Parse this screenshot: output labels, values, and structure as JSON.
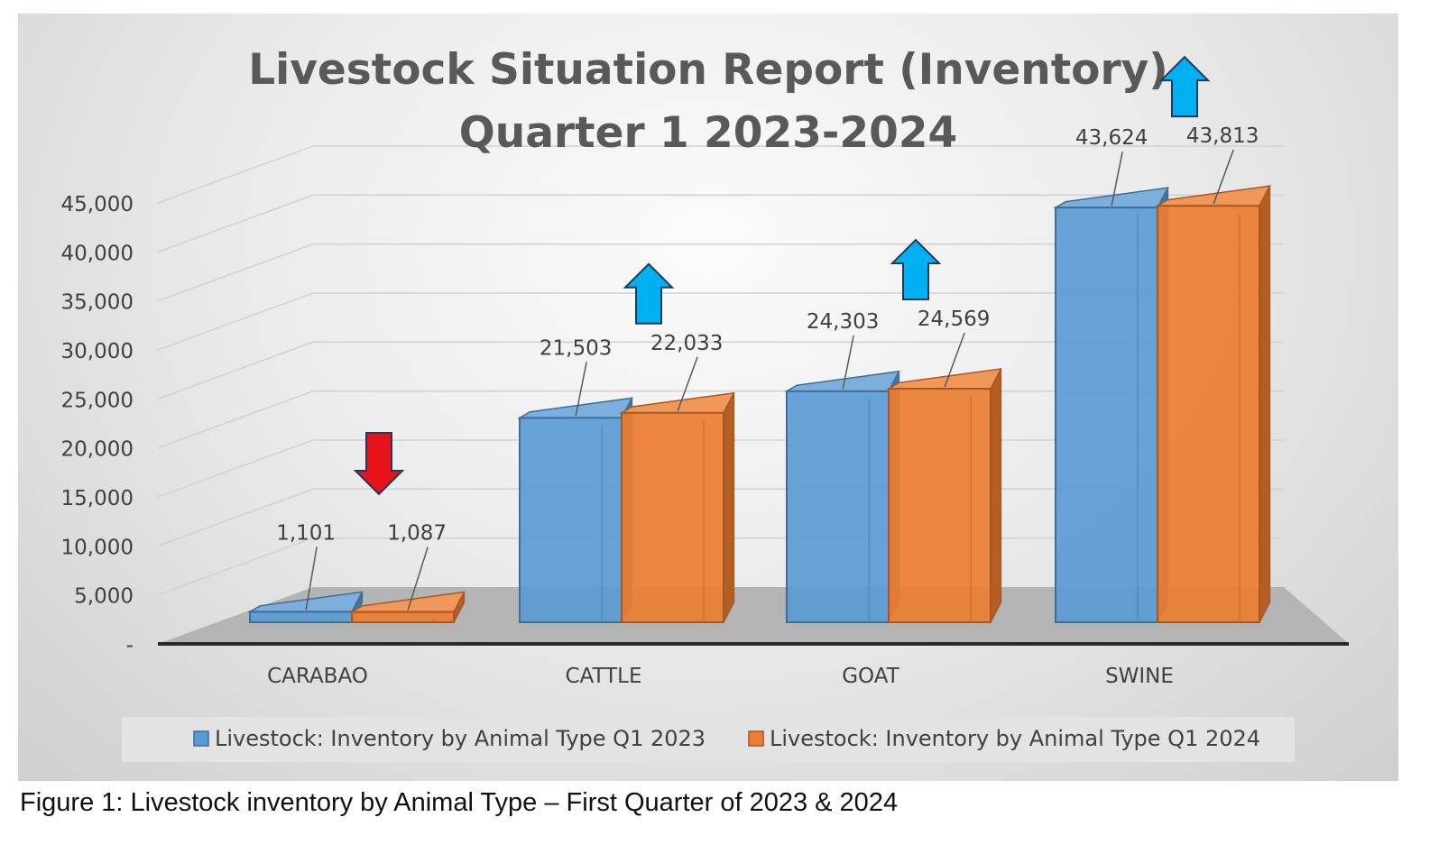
{
  "chart_data": {
    "type": "bar",
    "title_line1": "Livestock Situation Report (Inventory)",
    "title_line2": "Quarter 1 2023-2024",
    "categories": [
      "CARABAO",
      "CATTLE",
      "GOAT",
      "SWINE"
    ],
    "series": [
      {
        "name": "Livestock: Inventory by Animal Type Q1 2023",
        "values": [
          1101,
          21503,
          24303,
          43624
        ],
        "labels": [
          "1,101",
          "21,503",
          "24,303",
          "43,624"
        ],
        "color": "#5B9BD5"
      },
      {
        "name": "Livestock: Inventory by Animal Type Q1 2024",
        "values": [
          1087,
          22033,
          24569,
          43813
        ],
        "labels": [
          "1,087",
          "22,033",
          "24,569",
          "43,813"
        ],
        "color": "#ED7D31"
      }
    ],
    "ylim": [
      0,
      45000
    ],
    "yticks": [
      "-",
      "5,000",
      "10,000",
      "15,000",
      "20,000",
      "25,000",
      "30,000",
      "35,000",
      "40,000",
      "45,000"
    ],
    "trend_arrows": [
      {
        "category": "CARABAO",
        "direction": "down",
        "color": "#E8121C"
      },
      {
        "category": "CATTLE",
        "direction": "up",
        "color": "#00B0F0"
      },
      {
        "category": "GOAT",
        "direction": "up",
        "color": "#00B0F0"
      },
      {
        "category": "SWINE",
        "direction": "up",
        "color": "#00B0F0"
      }
    ],
    "grid": true,
    "legend_position": "bottom"
  },
  "caption": "Figure 1: Livestock inventory by Animal Type – First Quarter of 2023 & 2024"
}
